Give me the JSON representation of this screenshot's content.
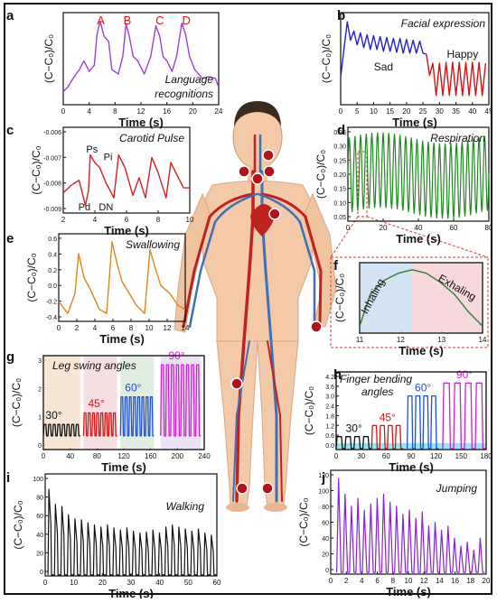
{
  "figure": {
    "panels": [
      {
        "id": "a",
        "letter": "a",
        "title": "Language recognitions",
        "ylabel": "(C−C₀)/C₀",
        "xlabel": "Time (s)",
        "xticks": [
          "0",
          "4",
          "8",
          "12",
          "16",
          "20",
          "24"
        ],
        "yticks": [],
        "annotations": [
          "A",
          "B",
          "C",
          "D"
        ]
      },
      {
        "id": "b",
        "letter": "b",
        "title": "Facial expression",
        "ylabel": "(C−C₀)/C₀",
        "xlabel": "Time (s)",
        "xticks": [
          "0",
          "5",
          "10",
          "15",
          "20",
          "25",
          "30",
          "35",
          "40",
          "45"
        ],
        "yticks": [],
        "annotations": [
          "Sad",
          "Happy"
        ]
      },
      {
        "id": "c",
        "letter": "c",
        "title": "Carotid Pulse",
        "ylabel": "(C−C₀)/C₀",
        "xlabel": "Time (s)",
        "xticks": [
          "2",
          "4",
          "6",
          "8",
          "10"
        ],
        "yticks": [
          "-0.006",
          "-0.007",
          "-0.008",
          "-0.009"
        ],
        "annotations": [
          "Ps",
          "Pi",
          "Pd",
          "DN"
        ]
      },
      {
        "id": "d",
        "letter": "d",
        "title": "Respiration",
        "ylabel": "(C−C₀)/C₀",
        "xlabel": "Time (s)",
        "xticks": [
          "0",
          "20",
          "40",
          "60",
          "80"
        ],
        "yticks": [
          "0.35",
          "0.30",
          "0.25",
          "0.20",
          "0.15",
          "0.10",
          "0.05"
        ],
        "annotations": []
      },
      {
        "id": "e",
        "letter": "e",
        "title": "Swallowing",
        "ylabel": "(C−C₀)/C₀",
        "xlabel": "Time (s)",
        "xticks": [
          "0",
          "2",
          "4",
          "6",
          "8",
          "10",
          "12",
          "14"
        ],
        "yticks": [
          "0.6",
          "0.4",
          "0.2",
          "0.0",
          "-0.2",
          "-0.4"
        ],
        "annotations": []
      },
      {
        "id": "f",
        "letter": "f",
        "title": "",
        "ylabel": "(C−C₀)/C₀",
        "xlabel": "Time (s)",
        "xticks": [
          "11",
          "12",
          "13",
          "14"
        ],
        "yticks": [],
        "annotations": [
          "Inhaling",
          "Exhaling"
        ]
      },
      {
        "id": "g",
        "letter": "g",
        "title": "Leg swing angles",
        "ylabel": "(C−C₀)/C₀",
        "xlabel": "Time (s)",
        "xticks": [
          "0",
          "40",
          "80",
          "120",
          "160",
          "200",
          "240"
        ],
        "yticks": [
          "3",
          "2",
          "1",
          "0"
        ],
        "annotations": [
          "30°",
          "45°",
          "60°",
          "90°"
        ]
      },
      {
        "id": "h",
        "letter": "h",
        "title": "Finger bending angles",
        "ylabel": "(C−C₀)/C₀",
        "xlabel": "Time (s)",
        "xticks": [
          "0",
          "30",
          "60",
          "90",
          "120",
          "150",
          "180"
        ],
        "yticks": [
          "4.2",
          "3.6",
          "3.0",
          "2.4",
          "1.8",
          "1.2",
          "0.6",
          "0.0"
        ],
        "annotations": [
          "30°",
          "45°",
          "60°",
          "90°"
        ]
      },
      {
        "id": "i",
        "letter": "i",
        "title": "Walking",
        "ylabel": "(C−C₀)/C₀",
        "xlabel": "Time (s)",
        "xticks": [
          "0",
          "10",
          "20",
          "30",
          "40",
          "50",
          "60"
        ],
        "yticks": [
          "100",
          "80",
          "60",
          "40",
          "20",
          "0"
        ],
        "annotations": []
      },
      {
        "id": "j",
        "letter": "j",
        "title": "Jumping",
        "ylabel": "(C−C₀)/C₀",
        "xlabel": "Time (s)",
        "xticks": [
          "0",
          "2",
          "4",
          "6",
          "8",
          "10",
          "12",
          "14",
          "16",
          "18",
          "20"
        ],
        "yticks": [
          "120",
          "100",
          "80",
          "60",
          "40",
          "20",
          "0"
        ],
        "annotations": []
      }
    ],
    "colors": {
      "a": "#9b3fe0",
      "b_sad": "#2222cc",
      "b_happy": "#dd1111",
      "c": "#d42020",
      "d": "#1f8a1f",
      "e": "#e0861a",
      "f": "#2e7d32",
      "g30": "#111111",
      "g45": "#e01010",
      "g60": "#1f4fd8",
      "g90": "#d21ed2",
      "i": "#111111",
      "j": "#8a1fd8",
      "skin": "#f3c9a8",
      "artery": "#c0221f",
      "vein": "#3f6fb5",
      "marker": "#b3121c",
      "annotation_red": "#e01010",
      "inhale_bg": "#cfe0f2",
      "exhale_bg": "#f6d4d8"
    }
  },
  "chart_data": [
    {
      "panel": "a",
      "type": "line",
      "title": "Language recognitions",
      "xlabel": "Time (s)",
      "ylabel": "(C−C₀)/C₀",
      "xlim": [
        0,
        24
      ],
      "series": [
        {
          "name": "",
          "x": [
            0,
            0.7,
            1.5,
            2.5,
            3.2,
            4,
            4.8,
            5.2,
            5.7,
            6.3,
            7,
            7.5,
            8.5,
            9.2,
            9.7,
            10.2,
            10.8,
            11.5,
            12.5,
            13.5,
            14.3,
            14.9,
            15.4,
            16,
            16.8,
            17.5,
            18.3,
            18.9,
            19.5,
            20.3,
            21.5,
            22.5,
            23.5,
            24
          ],
          "y": [
            0.15,
            0.2,
            0.3,
            0.4,
            0.5,
            0.38,
            0.45,
            0.8,
            0.95,
            0.78,
            0.72,
            0.4,
            0.35,
            0.55,
            0.92,
            0.78,
            0.55,
            0.5,
            0.35,
            0.55,
            0.9,
            0.78,
            0.55,
            0.5,
            0.38,
            0.55,
            0.93,
            0.8,
            0.55,
            0.4,
            0.3,
            0.32,
            0.3,
            0.2
          ]
        }
      ],
      "labels": [
        "A",
        "B",
        "C",
        "D"
      ]
    },
    {
      "panel": "b",
      "type": "line",
      "title": "Facial expression",
      "xlabel": "Time (s)",
      "ylabel": "(C−C₀)/C₀",
      "xlim": [
        0,
        45
      ],
      "series": [
        {
          "name": "Sad",
          "x": [
            0,
            1,
            2,
            3,
            4,
            5,
            6,
            7,
            8,
            9,
            10,
            11,
            12,
            13,
            14,
            15,
            16,
            17,
            18,
            19,
            20,
            21,
            22,
            23,
            24,
            25,
            26
          ],
          "y": [
            0.3,
            0.6,
            0.9,
            0.7,
            0.8,
            0.65,
            0.78,
            0.62,
            0.76,
            0.6,
            0.75,
            0.6,
            0.74,
            0.58,
            0.73,
            0.58,
            0.72,
            0.57,
            0.72,
            0.56,
            0.71,
            0.56,
            0.7,
            0.56,
            0.69,
            0.56,
            0.55
          ]
        },
        {
          "name": "Happy",
          "x": [
            26,
            27,
            28,
            29,
            30,
            31,
            32,
            33,
            34,
            35,
            36,
            37,
            38,
            39,
            40,
            41,
            42,
            43,
            44
          ],
          "y": [
            0.55,
            0.32,
            0.45,
            0.1,
            0.45,
            0.1,
            0.46,
            0.1,
            0.46,
            0.1,
            0.46,
            0.1,
            0.46,
            0.1,
            0.46,
            0.1,
            0.46,
            0.1,
            0.45
          ]
        }
      ]
    },
    {
      "panel": "c",
      "type": "line",
      "title": "Carotid Pulse",
      "xlabel": "Time (s)",
      "ylabel": "(C−C₀)/C₀",
      "xlim": [
        2,
        10
      ],
      "ylim": [
        -0.0092,
        -0.0058
      ],
      "series": [
        {
          "name": "",
          "x": [
            2,
            2.5,
            3,
            3.4,
            3.6,
            3.7,
            4,
            4.3,
            4.7,
            5.2,
            5.5,
            5.9,
            6.4,
            6.8,
            7.2,
            7.6,
            8,
            8.5,
            8.8,
            9.2,
            9.6,
            10
          ],
          "y": [
            -0.0084,
            -0.0081,
            -0.0079,
            -0.0089,
            -0.0083,
            -0.0069,
            -0.0072,
            -0.0074,
            -0.008,
            -0.0086,
            -0.0069,
            -0.0074,
            -0.0085,
            -0.0078,
            -0.0086,
            -0.007,
            -0.0076,
            -0.0086,
            -0.0072,
            -0.0077,
            -0.0082,
            -0.0082
          ]
        }
      ],
      "labels": [
        "Ps",
        "Pi",
        "Pd",
        "DN"
      ]
    },
    {
      "panel": "d",
      "type": "line",
      "title": "Respiration",
      "xlabel": "Time (s)",
      "ylabel": "(C−C₀)/C₀",
      "xlim": [
        0,
        82
      ],
      "ylim": [
        0.03,
        0.37
      ],
      "series": [
        {
          "name": "",
          "x": [
            0,
            82
          ],
          "y": [
            0.2,
            0.2
          ],
          "cycles": 25,
          "min": 0.06,
          "max": 0.33
        }
      ]
    },
    {
      "panel": "e",
      "type": "line",
      "title": "Swallowing",
      "xlabel": "Time (s)",
      "ylabel": "(C−C₀)/C₀",
      "xlim": [
        0,
        14
      ],
      "ylim": [
        -0.4,
        0.7
      ],
      "series": [
        {
          "name": "",
          "x": [
            0,
            1,
            1.8,
            2.2,
            2.8,
            3.5,
            4.5,
            5.3,
            5.9,
            6.4,
            7,
            7.8,
            8.6,
            9.5,
            10.1,
            10.6,
            11.3,
            12.3,
            13.2,
            14
          ],
          "y": [
            -0.15,
            -0.3,
            -0.05,
            0.45,
            0.15,
            0.0,
            -0.25,
            -0.3,
            0.6,
            0.35,
            0.1,
            -0.05,
            -0.2,
            -0.3,
            0.5,
            0.3,
            0.05,
            -0.05,
            -0.2,
            -0.25
          ]
        }
      ]
    },
    {
      "panel": "f",
      "type": "line",
      "title": "",
      "xlabel": "Time (s)",
      "ylabel": "(C−C₀)/C₀",
      "xlim": [
        10.5,
        14
      ],
      "series": [
        {
          "name": "",
          "x": [
            10.5,
            10.8,
            11.2,
            11.6,
            12,
            12.4,
            12.8,
            13.2,
            13.6,
            14
          ],
          "y": [
            0.1,
            0.55,
            0.75,
            0.85,
            0.9,
            0.85,
            0.72,
            0.55,
            0.3,
            0.1
          ]
        }
      ],
      "labels": [
        "Inhaling",
        "Exhaling"
      ]
    },
    {
      "panel": "g",
      "type": "line",
      "title": "Leg swing angles",
      "xlabel": "Time (s)",
      "ylabel": "(C−C₀)/C₀",
      "xlim": [
        0,
        240
      ],
      "ylim": [
        -0.5,
        3.6
      ],
      "series": [
        {
          "name": "30°",
          "x": [
            0,
            55
          ],
          "y": [
            0,
            0.6
          ]
        },
        {
          "name": "45°",
          "x": [
            60,
            110
          ],
          "y": [
            0,
            1.1
          ]
        },
        {
          "name": "60°",
          "x": [
            115,
            165
          ],
          "y": [
            0,
            1.8
          ]
        },
        {
          "name": "90°",
          "x": [
            175,
            235
          ],
          "y": [
            0,
            3.2
          ]
        }
      ]
    },
    {
      "panel": "h",
      "type": "line",
      "title": "Finger bending angles",
      "xlabel": "Time (s)",
      "ylabel": "(C−C₀)/C₀",
      "xlim": [
        0,
        190
      ],
      "ylim": [
        0,
        4.2
      ],
      "series": [
        {
          "name": "30°",
          "x": [
            0,
            45
          ],
          "y": [
            0,
            0.7
          ]
        },
        {
          "name": "45°",
          "x": [
            45,
            85
          ],
          "y": [
            0,
            1.3
          ]
        },
        {
          "name": "60°",
          "x": [
            90,
            130
          ],
          "y": [
            0,
            2.9
          ]
        },
        {
          "name": "90°",
          "x": [
            135,
            190
          ],
          "y": [
            0,
            3.6
          ]
        }
      ]
    },
    {
      "panel": "i",
      "type": "line",
      "title": "Walking",
      "xlabel": "Time (s)",
      "ylabel": "(C−C₀)/C₀",
      "xlim": [
        0,
        62
      ],
      "ylim": [
        0,
        100
      ],
      "series": [
        {
          "name": "",
          "x": [
            0,
            62
          ],
          "y": [
            0,
            85
          ],
          "peaks": [
            85,
            70,
            68,
            60,
            56,
            55,
            52,
            50,
            48,
            50,
            47,
            45,
            47,
            44,
            42,
            43,
            45,
            42,
            48,
            50,
            48,
            46,
            44,
            46,
            42,
            40
          ]
        }
      ]
    },
    {
      "panel": "j",
      "type": "line",
      "title": "Jumping",
      "xlabel": "Time (s)",
      "ylabel": "(C−C₀)/C₀",
      "xlim": [
        0,
        21
      ],
      "ylim": [
        0,
        130
      ],
      "series": [
        {
          "name": "",
          "x": [
            0,
            21
          ],
          "y": [
            0,
            120
          ],
          "peaks": [
            120,
            100,
            85,
            95,
            80,
            88,
            95,
            100,
            90,
            85,
            75,
            80,
            70,
            78,
            60,
            65,
            55,
            60,
            45,
            35,
            40,
            30,
            45
          ]
        }
      ]
    }
  ]
}
